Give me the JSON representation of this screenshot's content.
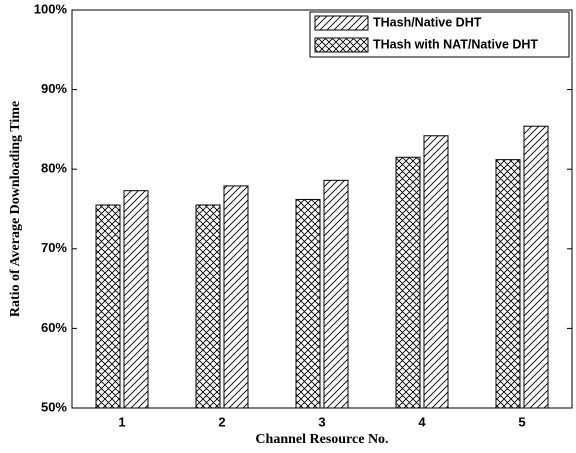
{
  "chart_data": {
    "type": "bar",
    "x_label": "Channel Resource No.",
    "y_label": "Ratio of Average Downloading Time",
    "categories": [
      "1",
      "2",
      "3",
      "4",
      "5"
    ],
    "series": [
      {
        "name": "THash/Native DHT",
        "color": "#000000",
        "hatch": "diagonal",
        "values": [
          77.3,
          77.9,
          78.6,
          84.2,
          85.4
        ]
      },
      {
        "name": "THash with NAT/Native DHT",
        "color": "#000000",
        "hatch": "cross",
        "values": [
          75.5,
          75.5,
          76.2,
          81.5,
          81.2
        ]
      }
    ],
    "ylim": [
      50,
      100
    ],
    "yticks": [
      {
        "value": 50,
        "label": "50%"
      },
      {
        "value": 60,
        "label": "60%"
      },
      {
        "value": 70,
        "label": "70%"
      },
      {
        "value": 80,
        "label": "80%"
      },
      {
        "value": 90,
        "label": "90%"
      },
      {
        "value": 100,
        "label": "100%"
      }
    ],
    "legend": "upper right"
  }
}
